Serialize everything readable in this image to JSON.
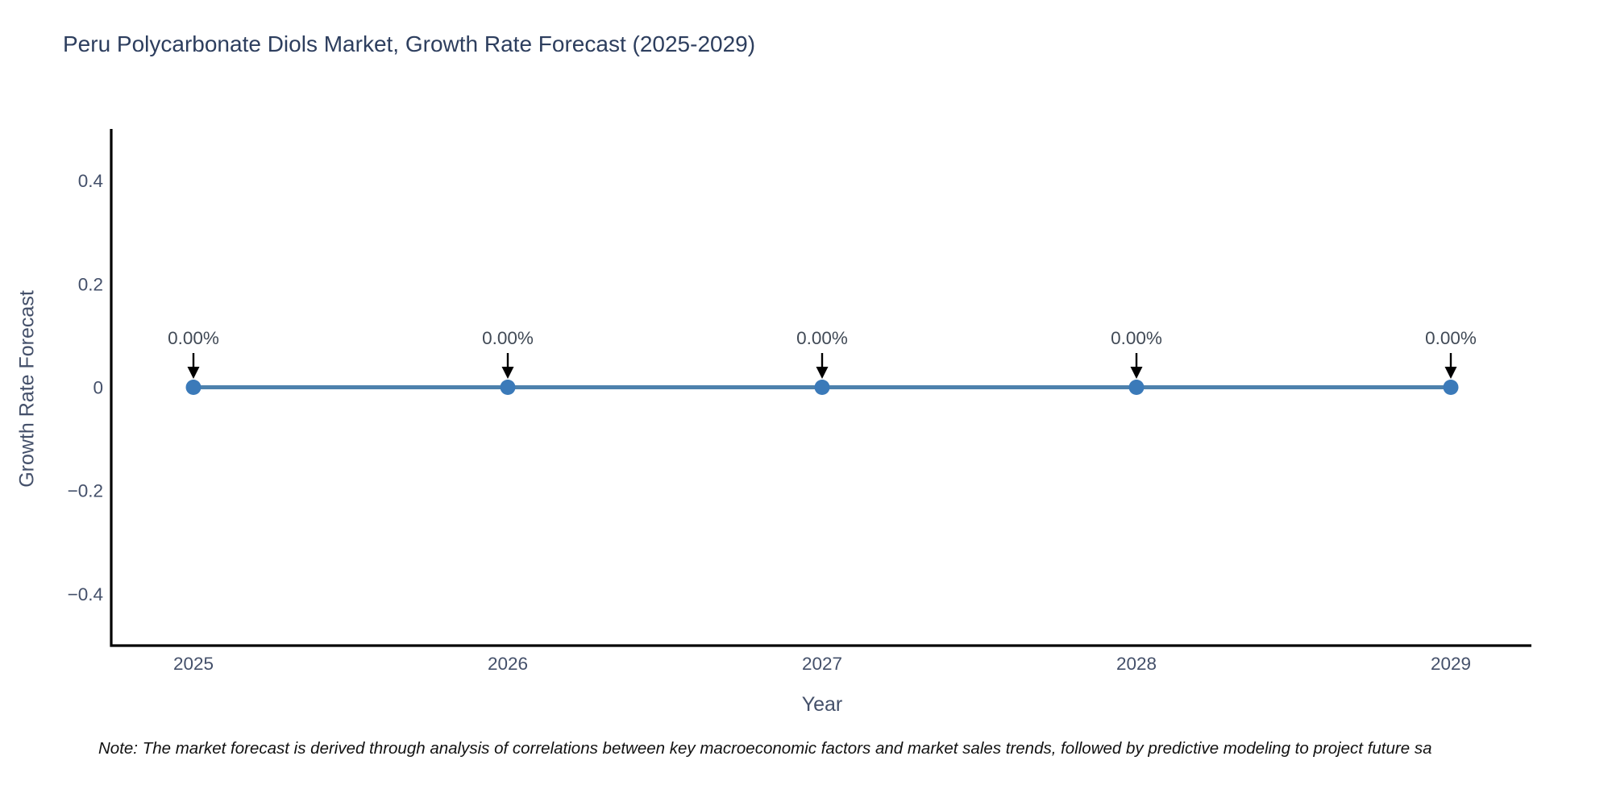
{
  "title": "Peru Polycarbonate Diols Market, Growth Rate Forecast (2025-2029)",
  "note": "Note: The market forecast is derived through analysis of correlations between key macroeconomic factors and market sales trends, followed by predictive modeling to project future sa",
  "chart_data": {
    "type": "line",
    "title": "Peru Polycarbonate Diols Market, Growth Rate Forecast (2025-2029)",
    "xlabel": "Year",
    "ylabel": "Growth Rate Forecast",
    "x": [
      2025,
      2026,
      2027,
      2028,
      2029
    ],
    "y": [
      0,
      0,
      0,
      0,
      0
    ],
    "point_labels": [
      "0.00%",
      "0.00%",
      "0.00%",
      "0.00%",
      "0.00%"
    ],
    "xtick_labels": [
      "2025",
      "2026",
      "2027",
      "2028",
      "2029"
    ],
    "yticks": [
      0.4,
      0.2,
      0,
      -0.2,
      -0.4
    ],
    "ytick_labels": [
      "0.4",
      "0.2",
      "0",
      "−0.2",
      "−0.4"
    ],
    "ylim": [
      -0.5,
      0.5
    ],
    "grid": false,
    "legend_position": "none",
    "colors": {
      "line": "#4d81ad",
      "marker": "#3b7ab9",
      "axis": "#000000",
      "tick_label": "#44506a",
      "annotation_text": "#414a56",
      "arrow": "#000000",
      "title": "#2d3e5e",
      "background": "#ffffff"
    }
  }
}
